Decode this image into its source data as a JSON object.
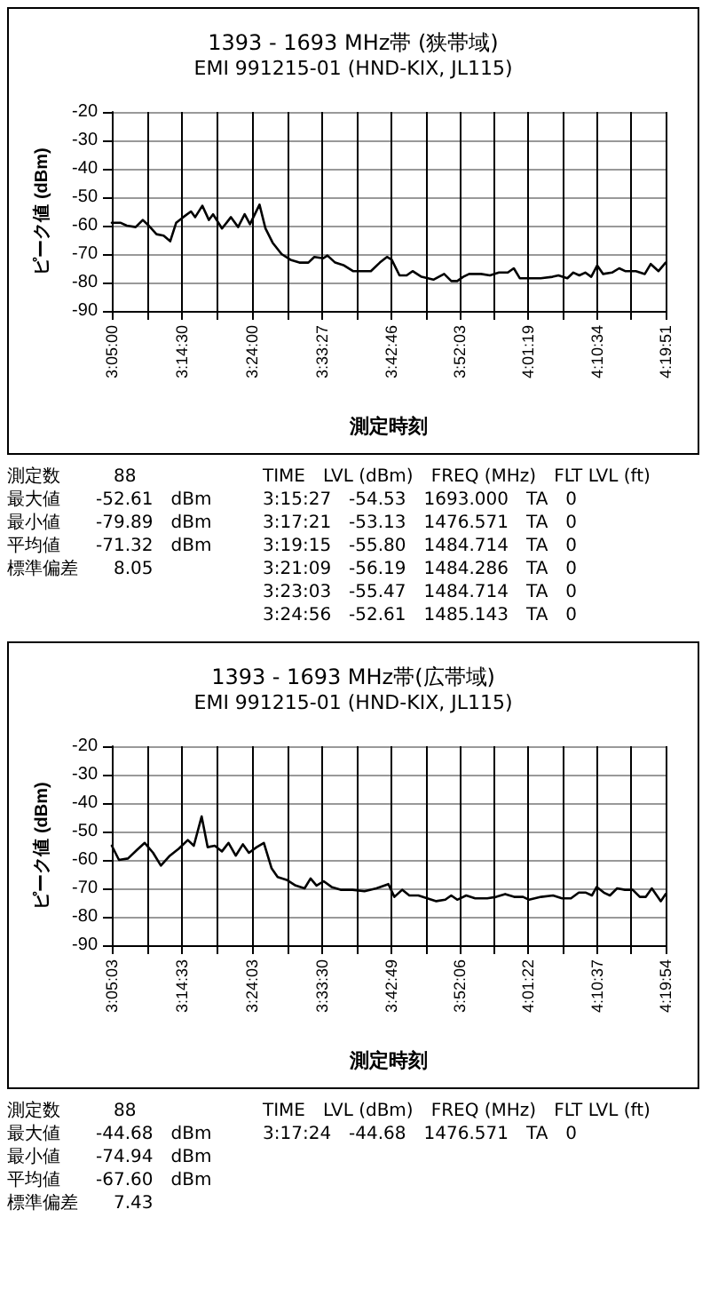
{
  "chart_data": [
    {
      "type": "line",
      "title": "1393 - 1693 MHz帯 (狭帯域)",
      "subtitle": "EMI 991215-01 (HND-KIX, JL115)",
      "xlabel": "測定時刻",
      "ylabel": "ピーク値 (dBm)",
      "series": [
        {
          "color": "#000000",
          "x": [
            3.0833,
            3.1034,
            3.1169,
            3.137,
            3.1531,
            3.1665,
            3.1839,
            3.2,
            3.2148,
            3.2282,
            3.2443,
            3.2617,
            3.2711,
            3.2872,
            3.302,
            3.3114,
            3.3315,
            3.3516,
            3.3677,
            3.3825,
            3.3945,
            3.416,
            3.4294,
            3.4455,
            3.4657,
            3.4858,
            3.5059,
            3.526,
            3.5394,
            3.5596,
            3.5689,
            3.5864,
            3.6065,
            3.6266,
            3.6467,
            3.6668,
            3.687,
            3.7031,
            3.7138,
            3.7313,
            3.7474,
            3.7608,
            3.7809,
            3.8077,
            3.8319,
            3.848,
            3.8614,
            3.8748,
            3.8882,
            3.915,
            3.9351,
            3.9553,
            3.9754,
            3.9888,
            4.0022,
            4.0223,
            4.0492,
            4.076,
            4.0894,
            4.1095,
            4.1229,
            4.1364,
            4.1498,
            4.1632,
            4.1766,
            4.19,
            4.2101,
            4.2262,
            4.2396,
            4.2638,
            4.2839,
            4.2973,
            4.3148,
            4.3308
          ],
          "values": [
            -59,
            -59,
            -60,
            -60.5,
            -58,
            -60,
            -63,
            -63.5,
            -65.5,
            -59,
            -57,
            -55,
            -57,
            -53,
            -58,
            -56,
            -61,
            -57,
            -60.5,
            -56,
            -59.5,
            -52.6,
            -61,
            -66,
            -70,
            -72,
            -73,
            -73,
            -71,
            -71.5,
            -70.5,
            -73,
            -74,
            -76,
            -76,
            -76,
            -73,
            -71,
            -72,
            -77.5,
            -77.5,
            -76,
            -78,
            -79,
            -77,
            -79.5,
            -79.5,
            -78,
            -77,
            -77,
            -77.5,
            -76.5,
            -76.5,
            -75,
            -78.5,
            -78.5,
            -78.5,
            -78,
            -77.5,
            -78.5,
            -76.5,
            -77.5,
            -76.5,
            -78,
            -74,
            -77,
            -76.5,
            -75,
            -76,
            -76,
            -77,
            -73.5,
            -76,
            -73
          ]
        }
      ],
      "xlim": [
        3.0833,
        4.3308
      ],
      "xticks": [
        {
          "value": 3.0833,
          "label": "3:05:00"
        },
        {
          "value": 3.1625,
          "label": null
        },
        {
          "value": 3.2417,
          "label": "3:14:30"
        },
        {
          "value": 3.3208,
          "label": null
        },
        {
          "value": 3.4,
          "label": "3:24:00"
        },
        {
          "value": 3.4788,
          "label": null
        },
        {
          "value": 3.5575,
          "label": "3:33:27"
        },
        {
          "value": 3.6351,
          "label": null
        },
        {
          "value": 3.7128,
          "label": "3:42:46"
        },
        {
          "value": 3.7901,
          "label": null
        },
        {
          "value": 3.8675,
          "label": "3:52:03"
        },
        {
          "value": 3.9447,
          "label": null
        },
        {
          "value": 4.0219,
          "label": "4:01:19"
        },
        {
          "value": 4.099,
          "label": null
        },
        {
          "value": 4.1761,
          "label": "4:10:34"
        },
        {
          "value": 4.2535,
          "label": null
        },
        {
          "value": 4.3308,
          "label": "4:19:51"
        }
      ],
      "ylim": [
        -90,
        -20
      ],
      "yticks": [
        -90,
        -80,
        -70,
        -60,
        -50,
        -40,
        -30,
        -20
      ],
      "grid": true,
      "marker": "none",
      "line_style": "solid"
    },
    {
      "type": "other",
      "annotations": [
        "測定数　　　88",
        "最大値　　-52.61　dBm",
        "最小値　　-79.89　dBm",
        "平均値　　-71.32　dBm",
        "標準偏差　　8.05"
      ]
    },
    {
      "type": "other",
      "annotations": [
        "TIME　LVL (dBm)　FREQ (MHz)　FLT LVL (ft)",
        "3:15:27　-54.53　1693.000　TA　0",
        "3:17:21　-53.13　1476.571　TA　0",
        "3:19:15　-55.80　1484.714　TA　0",
        "3:21:09　-56.19　1484.286　TA　0",
        "3:23:03　-55.47　1484.714　TA　0",
        "3:24:56　-52.61　1485.143　TA　0"
      ]
    },
    {
      "type": "line",
      "title": "1393 - 1693 MHz帯(広帯域)",
      "subtitle": "EMI 991215-01 (HND-KIX, JL115)",
      "xlabel": "測定時刻",
      "ylabel": "ピーク値 (dBm)",
      "series": [
        {
          "color": "#000000",
          "x": [
            3.0842,
            3.1003,
            3.1206,
            3.1408,
            3.1583,
            3.1772,
            3.1947,
            3.215,
            3.2352,
            3.2554,
            3.2689,
            3.2865,
            3.3,
            3.3161,
            3.3323,
            3.3471,
            3.3633,
            3.3795,
            3.393,
            3.4105,
            3.4267,
            3.4442,
            3.4577,
            3.478,
            3.4982,
            3.5184,
            3.5319,
            3.5453,
            3.5615,
            3.5791,
            3.5993,
            3.6263,
            3.6533,
            3.6802,
            3.7072,
            3.7207,
            3.7382,
            3.7544,
            3.7747,
            3.7949,
            3.8151,
            3.8353,
            3.8488,
            3.8623,
            3.8825,
            3.9027,
            3.9297,
            3.95,
            3.9702,
            3.9904,
            4.0106,
            4.0241,
            4.0511,
            4.0781,
            4.0983,
            4.1185,
            4.1361,
            4.1522,
            4.1657,
            4.1765,
            4.1927,
            4.2062,
            4.2224,
            4.2399,
            4.2575,
            4.2736,
            4.2871,
            4.3006,
            4.3208,
            4.3317
          ],
          "values": [
            -55,
            -60,
            -59.5,
            -56.5,
            -54,
            -57.5,
            -62,
            -58.5,
            -56,
            -53,
            -55,
            -44.7,
            -55.5,
            -55,
            -57,
            -54,
            -58.5,
            -54.5,
            -57.5,
            -55.5,
            -54,
            -63,
            -66,
            -67,
            -69,
            -70,
            -66.5,
            -69,
            -67.5,
            -69.5,
            -70.5,
            -70.5,
            -71,
            -70,
            -68.5,
            -73,
            -70.5,
            -72.5,
            -72.5,
            -73.5,
            -74.5,
            -74,
            -72.5,
            -74,
            -72.5,
            -73.5,
            -73.5,
            -73,
            -72,
            -73,
            -73,
            -74,
            -73,
            -72.5,
            -73.5,
            -73.5,
            -71.5,
            -71.5,
            -72.5,
            -69.5,
            -71.5,
            -72.5,
            -70,
            -70.5,
            -70.5,
            -73,
            -73,
            -70,
            -74.5,
            -72
          ]
        }
      ],
      "xlim": [
        3.0842,
        4.3317
      ],
      "xticks": [
        {
          "value": 3.0842,
          "label": "3:05:03"
        },
        {
          "value": 3.1633,
          "label": null
        },
        {
          "value": 3.2425,
          "label": "3:14:33"
        },
        {
          "value": 3.3217,
          "label": null
        },
        {
          "value": 3.4008,
          "label": "3:24:03"
        },
        {
          "value": 3.4796,
          "label": null
        },
        {
          "value": 3.5583,
          "label": "3:33:30"
        },
        {
          "value": 3.636,
          "label": null
        },
        {
          "value": 3.7136,
          "label": "3:42:49"
        },
        {
          "value": 3.791,
          "label": null
        },
        {
          "value": 3.8683,
          "label": "3:52:06"
        },
        {
          "value": 3.9456,
          "label": null
        },
        {
          "value": 4.0228,
          "label": "4:01:22"
        },
        {
          "value": 4.0999,
          "label": null
        },
        {
          "value": 4.1769,
          "label": "4:10:37"
        },
        {
          "value": 4.2543,
          "label": null
        },
        {
          "value": 4.3317,
          "label": "4:19:54"
        }
      ],
      "ylim": [
        -90,
        -20
      ],
      "yticks": [
        -90,
        -80,
        -70,
        -60,
        -50,
        -40,
        -30,
        -20
      ],
      "grid": true,
      "marker": "none",
      "line_style": "solid"
    },
    {
      "type": "other",
      "annotations": [
        "測定数　　　88",
        "最大値　　-44.68　dBm",
        "最小値　　-74.94　dBm",
        "平均値　　-67.60　dBm",
        "標準偏差　　7.43"
      ]
    },
    {
      "type": "other",
      "annotations": [
        "TIME　LVL (dBm)　FREQ (MHz)　FLT LVL (ft)",
        "3:17:24　-44.68　1476.571　TA　0"
      ]
    }
  ]
}
